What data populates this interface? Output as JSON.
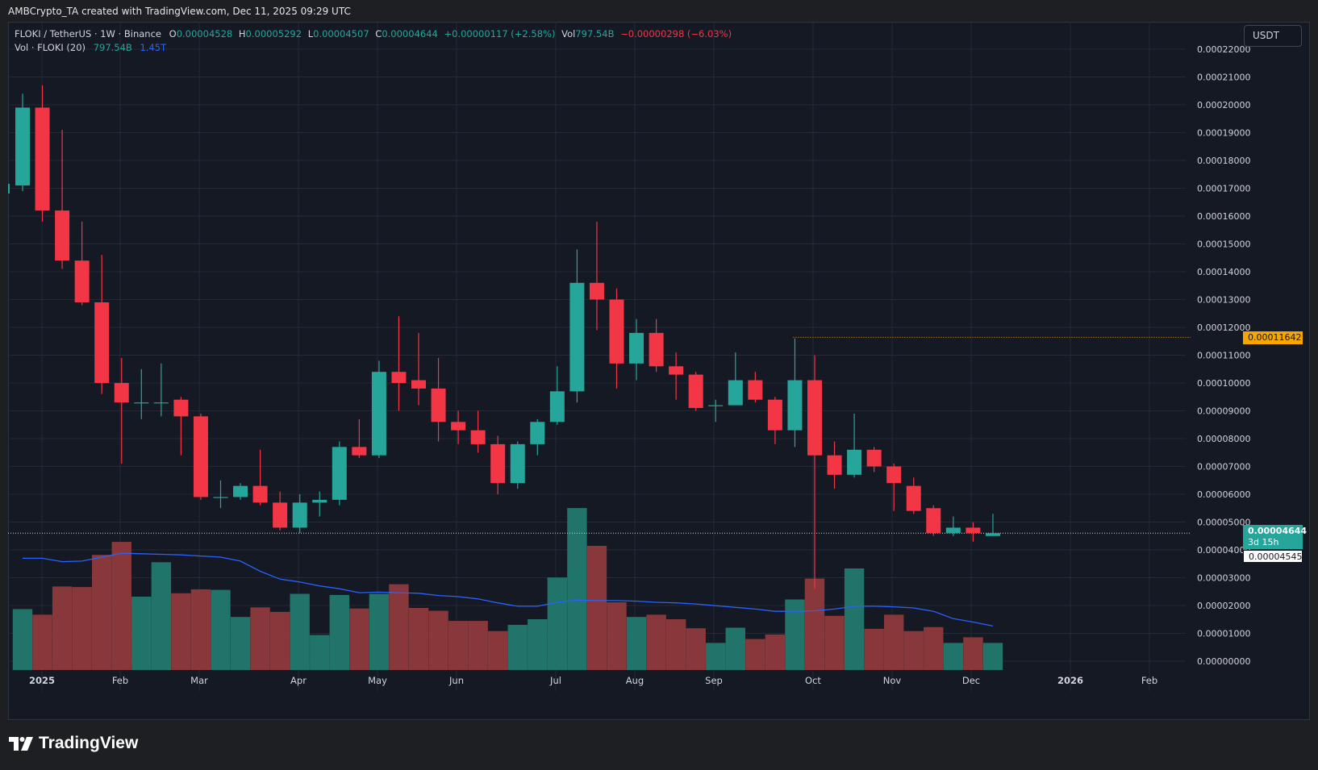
{
  "header": {
    "text": "AMBCrypto_TA created with TradingView.com, Dec 11, 2025 09:29 UTC"
  },
  "legend": {
    "symbol": "FLOKI / TetherUS · 1W · Binance",
    "o_label": "O",
    "o_value": "0.00004528",
    "h_label": "H",
    "h_value": "0.00005292",
    "l_label": "L",
    "l_value": "0.00004507",
    "c_label": "C",
    "c_value": "0.00004644",
    "change": "+0.00000117 (+2.58%)",
    "vol_label": "Vol",
    "vol_value": "797.54B",
    "vol_change": "−0.00000298 (−6.03%)",
    "vol_row_label": "Vol · FLOKI (20)",
    "vol_row_value1": "797.54B",
    "vol_row_value2": "1.45T"
  },
  "currency_button": "USDT",
  "price_tags": {
    "level": "0.00011642",
    "last": "0.00004644",
    "countdown": "3d 15h",
    "prev": "0.00004545"
  },
  "colors": {
    "up": "#26a69a",
    "down": "#f23645",
    "ma": "#2962ff",
    "level": "#f7a600",
    "background": "#151924",
    "grid": "#242936"
  },
  "footer": {
    "brand": "TradingView",
    "logo_icon": "tradingview-logo-icon"
  },
  "chart_data": {
    "type": "candlestick",
    "y_ticks": [
      "0.00022000",
      "0.00021000",
      "0.00020000",
      "0.00019000",
      "0.00018000",
      "0.00017000",
      "0.00016000",
      "0.00015000",
      "0.00014000",
      "0.00013000",
      "0.00012000",
      "0.00011000",
      "0.00010000",
      "0.00009000",
      "0.00008000",
      "0.00007000",
      "0.00006000",
      "0.00005000",
      "0.00004000",
      "0.00003000",
      "0.00002000",
      "0.00001000",
      "0.00000000"
    ],
    "ylim": [
      0,
      0.00022
    ],
    "x_ticks": [
      "2025",
      "Feb",
      "Mar",
      "Apr",
      "May",
      "Jun",
      "Jul",
      "Aug",
      "Sep",
      "Oct",
      "Nov",
      "Dec",
      "2026",
      "Feb"
    ],
    "horizontal_level": 0.00011642,
    "candles": [
      {
        "o": 0.000171,
        "h": 0.000204,
        "l": 0.000169,
        "c": 0.000199
      },
      {
        "o": 0.000199,
        "h": 0.000207,
        "l": 0.000158,
        "c": 0.000162
      },
      {
        "o": 0.000162,
        "h": 0.000191,
        "l": 0.000141,
        "c": 0.000144
      },
      {
        "o": 0.000144,
        "h": 0.000158,
        "l": 0.000128,
        "c": 0.000129
      },
      {
        "o": 0.000129,
        "h": 0.000146,
        "l": 9.6e-05,
        "c": 0.0001
      },
      {
        "o": 0.0001,
        "h": 0.000109,
        "l": 7.1e-05,
        "c": 9.3e-05
      },
      {
        "o": 9.3e-05,
        "h": 0.000105,
        "l": 8.7e-05,
        "c": 9.3e-05
      },
      {
        "o": 9.3e-05,
        "h": 0.000107,
        "l": 8.8e-05,
        "c": 9.3e-05
      },
      {
        "o": 9.4e-05,
        "h": 9.5e-05,
        "l": 7.4e-05,
        "c": 8.8e-05
      },
      {
        "o": 8.8e-05,
        "h": 8.9e-05,
        "l": 5.8e-05,
        "c": 5.9e-05
      },
      {
        "o": 5.9e-05,
        "h": 6.5e-05,
        "l": 5.5e-05,
        "c": 5.9e-05
      },
      {
        "o": 5.9e-05,
        "h": 6.4e-05,
        "l": 5.8e-05,
        "c": 6.3e-05
      },
      {
        "o": 6.3e-05,
        "h": 7.6e-05,
        "l": 5.6e-05,
        "c": 5.7e-05
      },
      {
        "o": 5.7e-05,
        "h": 6.1e-05,
        "l": 4.7e-05,
        "c": 4.8e-05
      },
      {
        "o": 4.8e-05,
        "h": 6e-05,
        "l": 4.6e-05,
        "c": 5.7e-05
      },
      {
        "o": 5.7e-05,
        "h": 6.1e-05,
        "l": 5.2e-05,
        "c": 5.8e-05
      },
      {
        "o": 5.8e-05,
        "h": 7.9e-05,
        "l": 5.6e-05,
        "c": 7.7e-05
      },
      {
        "o": 7.7e-05,
        "h": 8.7e-05,
        "l": 7.3e-05,
        "c": 7.4e-05
      },
      {
        "o": 7.4e-05,
        "h": 0.000108,
        "l": 7.3e-05,
        "c": 0.000104
      },
      {
        "o": 0.000104,
        "h": 0.000124,
        "l": 9e-05,
        "c": 0.0001
      },
      {
        "o": 0.000101,
        "h": 0.000118,
        "l": 9.2e-05,
        "c": 9.8e-05
      },
      {
        "o": 9.8e-05,
        "h": 0.000109,
        "l": 7.9e-05,
        "c": 8.6e-05
      },
      {
        "o": 8.6e-05,
        "h": 9e-05,
        "l": 7.8e-05,
        "c": 8.3e-05
      },
      {
        "o": 8.3e-05,
        "h": 9e-05,
        "l": 7.5e-05,
        "c": 7.8e-05
      },
      {
        "o": 7.8e-05,
        "h": 8.1e-05,
        "l": 6e-05,
        "c": 6.4e-05
      },
      {
        "o": 6.4e-05,
        "h": 7.9e-05,
        "l": 6.2e-05,
        "c": 7.8e-05
      },
      {
        "o": 7.8e-05,
        "h": 8.7e-05,
        "l": 7.4e-05,
        "c": 8.6e-05
      },
      {
        "o": 8.6e-05,
        "h": 0.000106,
        "l": 8.5e-05,
        "c": 9.7e-05
      },
      {
        "o": 9.7e-05,
        "h": 0.000148,
        "l": 9.3e-05,
        "c": 0.000136
      },
      {
        "o": 0.000136,
        "h": 0.000158,
        "l": 0.000119,
        "c": 0.00013
      },
      {
        "o": 0.00013,
        "h": 0.000134,
        "l": 9.8e-05,
        "c": 0.000107
      },
      {
        "o": 0.000107,
        "h": 0.000123,
        "l": 0.000101,
        "c": 0.000118
      },
      {
        "o": 0.000118,
        "h": 0.000123,
        "l": 0.000104,
        "c": 0.000106
      },
      {
        "o": 0.000106,
        "h": 0.000111,
        "l": 9.4e-05,
        "c": 0.000103
      },
      {
        "o": 0.000103,
        "h": 0.000104,
        "l": 9e-05,
        "c": 9.1e-05
      },
      {
        "o": 9.2e-05,
        "h": 9.4e-05,
        "l": 8.6e-05,
        "c": 9.2e-05
      },
      {
        "o": 9.2e-05,
        "h": 0.000111,
        "l": 9.2e-05,
        "c": 0.000101
      },
      {
        "o": 0.000101,
        "h": 0.000104,
        "l": 9.3e-05,
        "c": 9.4e-05
      },
      {
        "o": 9.4e-05,
        "h": 9.5e-05,
        "l": 7.8e-05,
        "c": 8.3e-05
      },
      {
        "o": 8.3e-05,
        "h": 0.000116,
        "l": 7.7e-05,
        "c": 0.000101
      },
      {
        "o": 0.000101,
        "h": 0.00011,
        "l": 2.6e-05,
        "c": 7.4e-05
      },
      {
        "o": 7.4e-05,
        "h": 7.9e-05,
        "l": 6.2e-05,
        "c": 6.7e-05
      },
      {
        "o": 6.7e-05,
        "h": 8.9e-05,
        "l": 6.6e-05,
        "c": 7.6e-05
      },
      {
        "o": 7.6e-05,
        "h": 7.7e-05,
        "l": 6.8e-05,
        "c": 7e-05
      },
      {
        "o": 7e-05,
        "h": 7.1e-05,
        "l": 5.4e-05,
        "c": 6.4e-05
      },
      {
        "o": 6.3e-05,
        "h": 6.6e-05,
        "l": 5.3e-05,
        "c": 5.4e-05
      },
      {
        "o": 5.5e-05,
        "h": 5.6e-05,
        "l": 4.5e-05,
        "c": 4.6e-05
      },
      {
        "o": 4.6e-05,
        "h": 5.2e-05,
        "l": 4.5e-05,
        "c": 4.8e-05
      },
      {
        "o": 4.8e-05,
        "h": 5e-05,
        "l": 4.3e-05,
        "c": 4.6e-05
      },
      {
        "o": 4.5e-05,
        "h": 5.3e-05,
        "l": 4.5e-05,
        "c": 4.6e-05
      }
    ],
    "volume_level": [
      1.08,
      0.98,
      1.48,
      1.47,
      2.04,
      2.27,
      1.3,
      1.91,
      1.36,
      1.43,
      1.42,
      0.94,
      1.11,
      1.03,
      1.35,
      0.62,
      1.33,
      1.09,
      1.35,
      1.52,
      1.1,
      1.05,
      0.87,
      0.87,
      0.69,
      0.8,
      0.9,
      1.64,
      2.87,
      2.2,
      1.2,
      0.94,
      0.98,
      0.9,
      0.74,
      0.48,
      0.75,
      0.55,
      0.63,
      1.25,
      1.62,
      0.96,
      1.8,
      0.73,
      0.98,
      0.69,
      0.76,
      0.48,
      0.58,
      0.48
    ],
    "volume_ma_level": [
      1.98,
      1.98,
      1.92,
      1.93,
      2.0,
      2.07,
      2.06,
      2.05,
      2.04,
      2.02,
      2.0,
      1.93,
      1.75,
      1.61,
      1.56,
      1.49,
      1.44,
      1.37,
      1.38,
      1.37,
      1.36,
      1.32,
      1.3,
      1.26,
      1.19,
      1.13,
      1.13,
      1.2,
      1.24,
      1.23,
      1.23,
      1.22,
      1.2,
      1.19,
      1.17,
      1.14,
      1.11,
      1.08,
      1.04,
      1.04,
      1.05,
      1.08,
      1.13,
      1.13,
      1.12,
      1.1,
      1.04,
      0.91,
      0.85,
      0.78
    ]
  }
}
